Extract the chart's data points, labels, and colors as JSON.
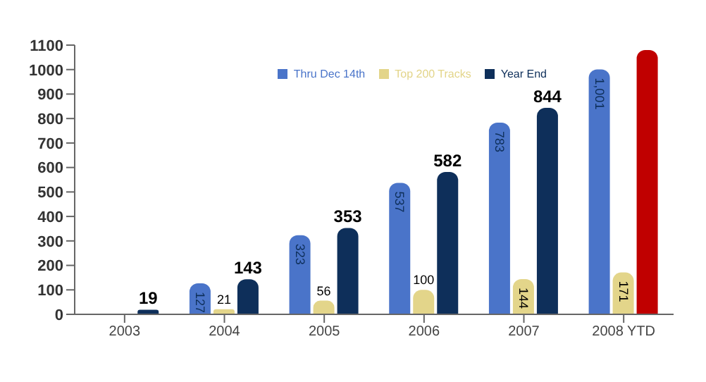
{
  "chart_data": {
    "type": "bar",
    "categories": [
      "2003",
      "2004",
      "2005",
      "2006",
      "2007",
      "2008 YTD"
    ],
    "series": [
      {
        "name": "Thru Dec 14th",
        "color": "#4a74c9",
        "values": [
          null,
          127,
          323,
          537,
          783,
          1001
        ],
        "value_labels": [
          null,
          "127",
          "323",
          "537",
          "783",
          "1,001"
        ]
      },
      {
        "name": "Top 200 Tracks",
        "color": "#e3d58a",
        "values": [
          null,
          21,
          56,
          100,
          144,
          171
        ],
        "value_labels": [
          null,
          "21",
          "56",
          "100",
          "144",
          "171"
        ]
      },
      {
        "name": "Year End",
        "color": "#0e2f5a",
        "colors": [
          "#0e2f5a",
          "#0e2f5a",
          "#0e2f5a",
          "#0e2f5a",
          "#0e2f5a",
          "#c00000"
        ],
        "values": [
          19,
          143,
          353,
          582,
          844,
          1080
        ],
        "value_labels": [
          "19",
          "143",
          "353",
          "582",
          "844",
          null
        ]
      }
    ],
    "ylim": [
      0,
      1100
    ],
    "yticks": [
      0,
      100,
      200,
      300,
      400,
      500,
      600,
      700,
      800,
      900,
      1000,
      1100
    ],
    "grid": false,
    "legend": "top right"
  }
}
